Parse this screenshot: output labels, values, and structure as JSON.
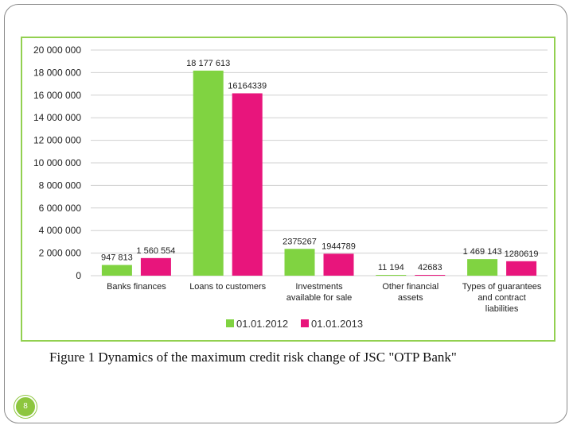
{
  "caption": "Figure 1 Dynamics of the maximum credit risk change of JSC \"OTP Bank\"",
  "page_number": "8",
  "colors": {
    "series1": "#80d341",
    "series2": "#e8157c",
    "border": "#92d050",
    "grid": "#d0d0d0",
    "badge": "#8dc63f"
  },
  "chart_data": {
    "type": "bar",
    "categories": [
      [
        "Banks finances"
      ],
      [
        "Loans to customers"
      ],
      [
        "Investments",
        "available for sale"
      ],
      [
        "Other financial",
        "assets"
      ],
      [
        "Types of guarantees",
        "and contract",
        "liabilities"
      ]
    ],
    "series": [
      {
        "name": "01.01.2012",
        "values": [
          947813,
          18177613,
          2375267,
          11194,
          1469143
        ],
        "labels": [
          "947 813",
          "18 177 613",
          "2375267",
          "11 194",
          "1 469 143"
        ]
      },
      {
        "name": "01.01.2013",
        "values": [
          1560554,
          16164339,
          1944789,
          42683,
          1280619
        ],
        "labels": [
          "1 560 554",
          "16164339",
          "1944789",
          "42683",
          "1280619"
        ]
      }
    ],
    "ylim": [
      0,
      20000000
    ],
    "yticks": [
      "0",
      "2 000 000",
      "4 000 000",
      "6 000 000",
      "8 000 000",
      "10 000 000",
      "12 000 000",
      "14 000 000",
      "16 000 000",
      "18 000 000",
      "20 000 000"
    ],
    "grid": true,
    "legend": "bottom"
  }
}
